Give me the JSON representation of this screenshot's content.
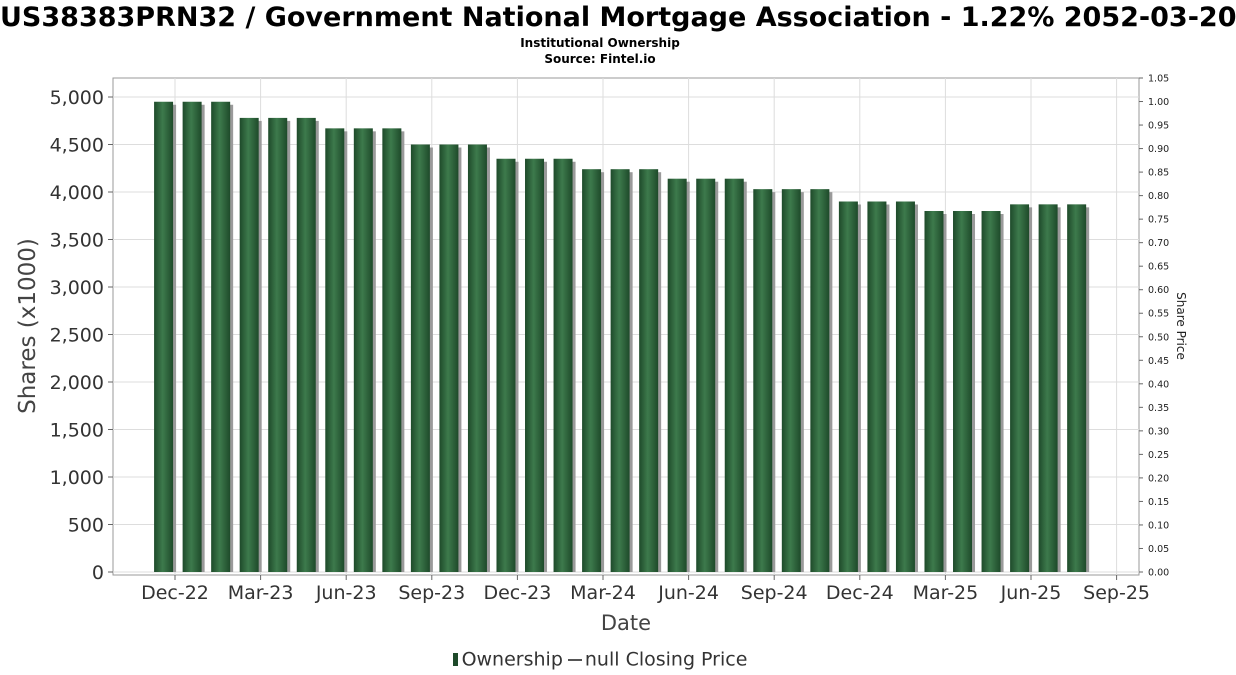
{
  "header": {
    "title": "US38383PRN32 / Government National Mortgage Association - 1.22% 2052-03-20",
    "subtitle1": "Institutional Ownership",
    "subtitle2": "Source: Fintel.io"
  },
  "legend": {
    "ownership_label": "Ownership",
    "price_label": "null Closing Price"
  },
  "colors": {
    "bar": "#1e4a2a",
    "bar_highlight": "#3d7a4c",
    "bar_shadow": "#9a9a9a",
    "grid": "#dddddd"
  },
  "chart_data": {
    "type": "bar",
    "xlabel": "Date",
    "ylabel": "Shares (x1000)",
    "y2label": "Share Price",
    "ylim": [
      0,
      5200
    ],
    "y2lim": [
      0,
      1.05
    ],
    "yticks": [
      "0",
      "500",
      "1,000",
      "1,500",
      "2,000",
      "2,500",
      "3,000",
      "3,500",
      "4,000",
      "4,500",
      "5,000"
    ],
    "y2ticks": [
      "0.00",
      "0.05",
      "0.10",
      "0.15",
      "0.20",
      "0.25",
      "0.30",
      "0.35",
      "0.40",
      "0.45",
      "0.50",
      "0.55",
      "0.60",
      "0.65",
      "0.70",
      "0.75",
      "0.80",
      "0.85",
      "0.90",
      "0.95",
      "1.00",
      "1.05"
    ],
    "xticks": [
      "Dec-22",
      "Mar-23",
      "Jun-23",
      "Sep-23",
      "Dec-23",
      "Mar-24",
      "Jun-24",
      "Sep-24",
      "Dec-24",
      "Mar-25",
      "Jun-25",
      "Sep-25"
    ],
    "grid": true,
    "legend_position": "bottom",
    "series": [
      {
        "name": "Ownership",
        "values": [
          4950,
          4950,
          4950,
          4780,
          4780,
          4780,
          4670,
          4670,
          4670,
          4500,
          4500,
          4500,
          4350,
          4350,
          4350,
          4240,
          4240,
          4240,
          4140,
          4140,
          4140,
          4030,
          4030,
          4030,
          3900,
          3900,
          3900,
          3800,
          3800,
          3800,
          3870,
          3870,
          3870
        ]
      }
    ]
  }
}
